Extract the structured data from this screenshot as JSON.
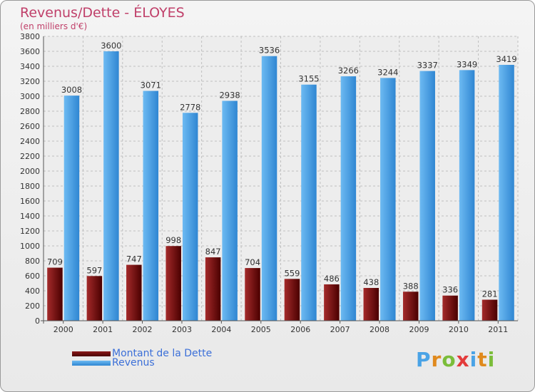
{
  "chart_data": {
    "type": "bar",
    "title": "Revenus/Dette - ÉLOYES",
    "subtitle": "(en milliers d'€)",
    "categories": [
      "2000",
      "2001",
      "2002",
      "2003",
      "2004",
      "2005",
      "2006",
      "2007",
      "2008",
      "2009",
      "2010",
      "2011"
    ],
    "series": [
      {
        "name": "Montant de la Dette",
        "color": "#8b1a1a",
        "values": [
          709,
          597,
          747,
          998,
          847,
          704,
          559,
          486,
          438,
          388,
          336,
          281
        ]
      },
      {
        "name": "Revenus",
        "color": "#4aa3e6",
        "values": [
          3008,
          3600,
          3071,
          2778,
          2938,
          3536,
          3155,
          3266,
          3244,
          3337,
          3349,
          3419
        ]
      }
    ],
    "ylim": [
      0,
      3800
    ],
    "ytick_step": 200,
    "grid": true,
    "legend_position": "bottom-left"
  },
  "logo": {
    "text": "Proxiti"
  }
}
